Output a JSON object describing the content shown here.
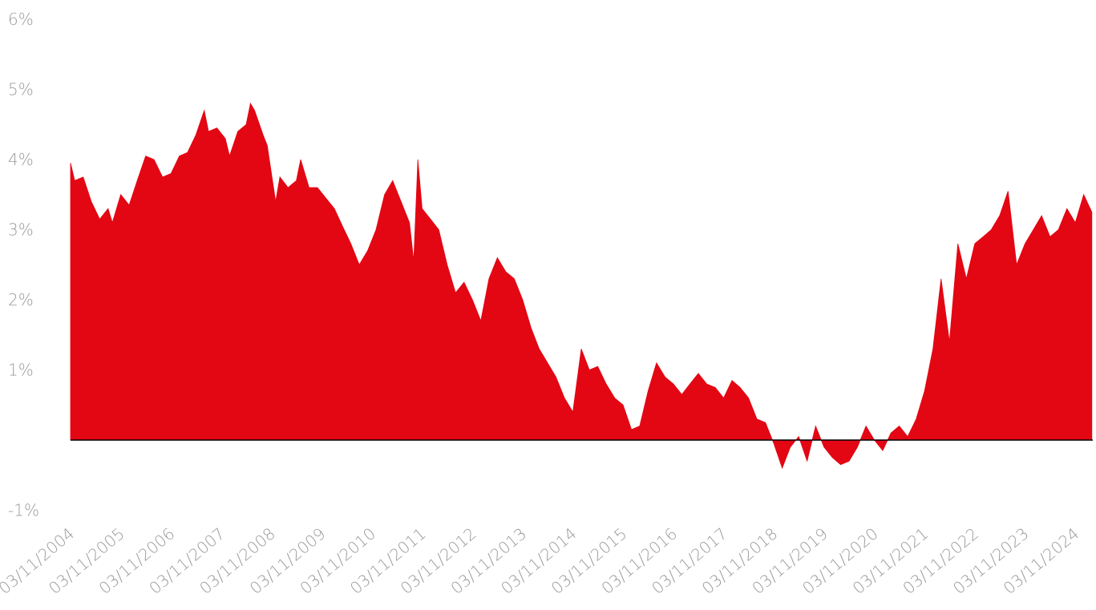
{
  "chart_data": {
    "type": "area",
    "color": "#e30613",
    "x": [
      "2004-11-03",
      "2004-12-03",
      "2005-02-03",
      "2005-04-03",
      "2005-06-03",
      "2005-08-03",
      "2005-09-03",
      "2005-11-03",
      "2006-01-03",
      "2006-03-03",
      "2006-05-03",
      "2006-07-03",
      "2006-09-03",
      "2006-11-03",
      "2007-01-03",
      "2007-03-03",
      "2007-05-03",
      "2007-07-03",
      "2007-08-03",
      "2007-10-03",
      "2007-12-03",
      "2008-01-03",
      "2008-03-03",
      "2008-05-03",
      "2008-06-03",
      "2008-07-03",
      "2008-09-03",
      "2008-10-03",
      "2008-12-03",
      "2009-01-03",
      "2009-03-03",
      "2009-05-03",
      "2009-06-03",
      "2009-08-03",
      "2009-10-03",
      "2009-12-03",
      "2010-02-03",
      "2010-04-03",
      "2010-06-03",
      "2010-08-03",
      "2010-10-03",
      "2010-12-03",
      "2011-02-03",
      "2011-04-03",
      "2011-06-03",
      "2011-08-03",
      "2011-09-03",
      "2011-10-03",
      "2011-11-03",
      "2012-01-03",
      "2012-03-03",
      "2012-05-03",
      "2012-07-03",
      "2012-09-03",
      "2012-11-03",
      "2013-01-03",
      "2013-03-03",
      "2013-05-03",
      "2013-07-03",
      "2013-09-03",
      "2013-11-03",
      "2014-01-03",
      "2014-03-03",
      "2014-05-03",
      "2014-07-03",
      "2014-09-03",
      "2014-11-03",
      "2015-01-03",
      "2015-03-03",
      "2015-05-03",
      "2015-07-03",
      "2015-09-03",
      "2015-11-03",
      "2016-01-03",
      "2016-03-03",
      "2016-05-03",
      "2016-07-03",
      "2016-09-03",
      "2016-11-03",
      "2017-01-03",
      "2017-03-03",
      "2017-05-03",
      "2017-07-03",
      "2017-09-03",
      "2017-11-03",
      "2018-01-03",
      "2018-03-03",
      "2018-05-03",
      "2018-07-03",
      "2018-09-03",
      "2018-11-03",
      "2019-01-03",
      "2019-03-03",
      "2019-05-03",
      "2019-07-03",
      "2019-09-03",
      "2019-11-03",
      "2020-01-03",
      "2020-03-03",
      "2020-05-03",
      "2020-07-03",
      "2020-09-03",
      "2020-11-03",
      "2021-01-03",
      "2021-03-03",
      "2021-05-03",
      "2021-07-03",
      "2021-09-03",
      "2021-11-03",
      "2022-01-03",
      "2022-03-03",
      "2022-05-03",
      "2022-07-03",
      "2022-09-03",
      "2022-11-03",
      "2023-01-03",
      "2023-03-03",
      "2023-05-03",
      "2023-07-03",
      "2023-09-03",
      "2023-11-03",
      "2024-01-03",
      "2024-03-03",
      "2024-05-03",
      "2024-07-03",
      "2024-09-03",
      "2024-11-03",
      "2025-01-03",
      "2025-03-03"
    ],
    "values": [
      3.95,
      3.7,
      3.75,
      3.4,
      3.15,
      3.3,
      3.1,
      3.5,
      3.35,
      3.7,
      4.05,
      4.0,
      3.75,
      3.8,
      4.05,
      4.1,
      4.35,
      4.7,
      4.4,
      4.45,
      4.3,
      4.05,
      4.4,
      4.5,
      4.8,
      4.7,
      4.35,
      4.2,
      3.4,
      3.75,
      3.6,
      3.7,
      4.0,
      3.6,
      3.6,
      3.45,
      3.3,
      3.05,
      2.8,
      2.5,
      2.7,
      3.0,
      3.5,
      3.7,
      3.4,
      3.1,
      2.55,
      4.0,
      3.3,
      3.15,
      3.0,
      2.5,
      2.1,
      2.25,
      2.0,
      1.7,
      2.3,
      2.6,
      2.4,
      2.3,
      2.0,
      1.6,
      1.3,
      1.1,
      0.9,
      0.6,
      0.4,
      1.3,
      1.0,
      1.05,
      0.8,
      0.6,
      0.5,
      0.15,
      0.2,
      0.7,
      1.1,
      0.9,
      0.8,
      0.65,
      0.8,
      0.95,
      0.8,
      0.75,
      0.6,
      0.85,
      0.75,
      0.6,
      0.3,
      0.25,
      -0.05,
      -0.4,
      -0.1,
      0.05,
      -0.3,
      0.2,
      -0.1,
      -0.25,
      -0.35,
      -0.3,
      -0.1,
      0.2,
      0.0,
      -0.15,
      0.1,
      0.2,
      0.05,
      0.3,
      0.7,
      1.3,
      2.3,
      1.4,
      2.8,
      2.3,
      2.8,
      2.9,
      3.0,
      3.2,
      3.55,
      2.5,
      2.8,
      3.0,
      3.2,
      2.9,
      3.0,
      3.3,
      3.1,
      3.5,
      3.25
    ],
    "xlim": [
      "2004-11-03",
      "2025-03-10"
    ],
    "xticks": [
      {
        "value": "2004-11-03",
        "label": "03/11/2004"
      },
      {
        "value": "2005-11-03",
        "label": "03/11/2005"
      },
      {
        "value": "2006-11-03",
        "label": "03/11/2006"
      },
      {
        "value": "2007-11-03",
        "label": "03/11/2007"
      },
      {
        "value": "2008-11-03",
        "label": "03/11/2008"
      },
      {
        "value": "2009-11-03",
        "label": "03/11/2009"
      },
      {
        "value": "2010-11-03",
        "label": "03/11/2010"
      },
      {
        "value": "2011-11-03",
        "label": "03/11/2011"
      },
      {
        "value": "2012-11-03",
        "label": "03/11/2012"
      },
      {
        "value": "2013-11-03",
        "label": "03/11/2013"
      },
      {
        "value": "2014-11-03",
        "label": "03/11/2014"
      },
      {
        "value": "2015-11-03",
        "label": "03/11/2015"
      },
      {
        "value": "2016-11-03",
        "label": "03/11/2016"
      },
      {
        "value": "2017-11-03",
        "label": "03/11/2017"
      },
      {
        "value": "2018-11-03",
        "label": "03/11/2018"
      },
      {
        "value": "2019-11-03",
        "label": "03/11/2019"
      },
      {
        "value": "2020-11-03",
        "label": "03/11/2020"
      },
      {
        "value": "2021-11-03",
        "label": "03/11/2021"
      },
      {
        "value": "2022-11-03",
        "label": "03/11/2022"
      },
      {
        "value": "2023-11-03",
        "label": "03/11/2023"
      },
      {
        "value": "2024-11-03",
        "label": "03/11/2024"
      }
    ],
    "ylim": [
      -1,
      6
    ],
    "yticks": [
      {
        "value": -1,
        "label": "-1%"
      },
      {
        "value": 1,
        "label": "1%"
      },
      {
        "value": 2,
        "label": "2%"
      },
      {
        "value": 3,
        "label": "3%"
      },
      {
        "value": 4,
        "label": "4%"
      },
      {
        "value": 5,
        "label": "5%"
      },
      {
        "value": 6,
        "label": "6%"
      }
    ]
  }
}
